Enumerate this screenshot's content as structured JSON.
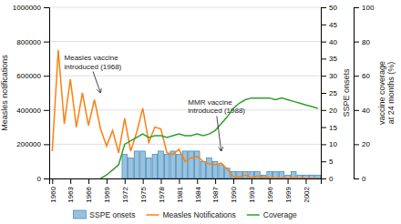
{
  "chart_data": {
    "type": "bar",
    "ylabel": "Measles notifications",
    "y2label": "SSPE onsets",
    "y3label": "vaccine coverage\nat 24 months (%)",
    "xlim": [
      1959.5,
      2004.5
    ],
    "xticks": [
      1960,
      1963,
      1966,
      1969,
      1972,
      1975,
      1978,
      1981,
      1984,
      1987,
      1990,
      1993,
      1996,
      1999,
      2002
    ],
    "ylim": [
      0,
      1000000
    ],
    "yticks": [
      0,
      200000,
      400000,
      600000,
      800000,
      1000000
    ],
    "y2lim": [
      0,
      50
    ],
    "y2ticks": [
      0,
      5,
      10,
      15,
      20,
      25,
      30,
      35,
      40,
      45,
      50
    ],
    "y3lim": [
      0,
      100
    ],
    "y3ticks": [
      0,
      20,
      40,
      60,
      80,
      100
    ],
    "grid": true,
    "legend": "bottom",
    "series": [
      {
        "name": "SSPE onsets",
        "type": "bar",
        "axis": "y2",
        "x": [
          1972,
          1973,
          1974,
          1975,
          1976,
          1977,
          1978,
          1979,
          1980,
          1981,
          1982,
          1983,
          1984,
          1985,
          1986,
          1987,
          1988,
          1989,
          1990,
          1991,
          1992,
          1993,
          1994,
          1995,
          1996,
          1997,
          1998,
          1999,
          2000,
          2001,
          2002,
          2003,
          2004
        ],
        "values": [
          7,
          6,
          8,
          8,
          6,
          7,
          8,
          7,
          8,
          7,
          8,
          8,
          8,
          5,
          6,
          5,
          4,
          3,
          2,
          2,
          2,
          2,
          2,
          1,
          2,
          2,
          2,
          1,
          2,
          1,
          1,
          1,
          1
        ]
      },
      {
        "name": "Measles Notifications",
        "type": "line",
        "axis": "y",
        "x": [
          1960,
          1961,
          1962,
          1963,
          1964,
          1965,
          1966,
          1967,
          1968,
          1969,
          1970,
          1971,
          1972,
          1973,
          1974,
          1975,
          1976,
          1977,
          1978,
          1979,
          1980,
          1981,
          1982,
          1983,
          1984,
          1985,
          1986,
          1987,
          1988,
          1989,
          1990,
          1991,
          1992,
          1993,
          1994,
          1995,
          1996,
          1997,
          1998,
          1999,
          2000,
          2001,
          2002,
          2003,
          2004
        ],
        "values": [
          160000,
          750000,
          320000,
          580000,
          300000,
          500000,
          310000,
          460000,
          290000,
          190000,
          280000,
          150000,
          350000,
          160000,
          270000,
          410000,
          210000,
          300000,
          290000,
          150000,
          140000,
          170000,
          100000,
          120000,
          130000,
          100000,
          85000,
          80000,
          90000,
          55000,
          10000,
          8000,
          20000,
          5000,
          15000,
          8000,
          5000,
          3000,
          4000,
          2000,
          5000,
          2000,
          1000,
          1000,
          500
        ]
      },
      {
        "name": "Coverage",
        "type": "line",
        "axis": "y3",
        "x": [
          1968,
          1969,
          1970,
          1971,
          1972,
          1973,
          1974,
          1975,
          1976,
          1977,
          1978,
          1979,
          1980,
          1981,
          1982,
          1983,
          1984,
          1985,
          1986,
          1987,
          1988,
          1989,
          1990,
          1991,
          1992,
          1993,
          1994,
          1995,
          1996,
          1997,
          1998,
          1999,
          2000,
          2001,
          2002,
          2003,
          2004
        ],
        "values": [
          0,
          2,
          5,
          8,
          20,
          22,
          24,
          26,
          24,
          25,
          25,
          24,
          25,
          26,
          25,
          25,
          26,
          25,
          26,
          28,
          32,
          36,
          41,
          44,
          46,
          47,
          47,
          47,
          47,
          46,
          47,
          46,
          45,
          44,
          43,
          42,
          41
        ]
      }
    ],
    "annotations": [
      {
        "text": "Measles vaccine\nintroduced (1968)",
        "x": 1968,
        "y": 500000,
        "text_x": 1962,
        "text_y": 680000
      },
      {
        "text": "MMR vaccine\nintroduced (1988)",
        "x": 1988,
        "y": 160000,
        "text_x": 1982.5,
        "text_y": 420000
      }
    ]
  }
}
